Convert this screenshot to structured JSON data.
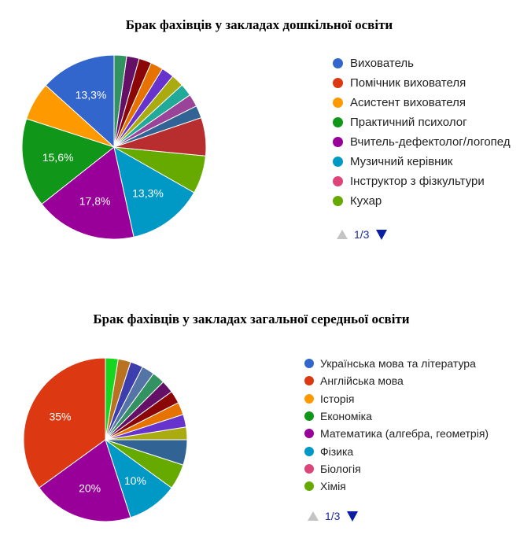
{
  "chart_data": [
    {
      "type": "pie",
      "title": "Брак фахівців у закладах дошкільної освіти",
      "legend_position": "right",
      "legend_entries": [
        {
          "label": "Вихователь",
          "color": "#3366cc"
        },
        {
          "label": "Помічник вихователя",
          "color": "#dc3912"
        },
        {
          "label": "Асистент вихователя",
          "color": "#ff9900"
        },
        {
          "label": "Практичний психолог",
          "color": "#109618"
        },
        {
          "label": "Вчитель-дефектолог/логопед",
          "color": "#990099"
        },
        {
          "label": "Музичний керівник",
          "color": "#0099c6"
        },
        {
          "label": "Інструктор з фізкультури",
          "color": "#dd4477"
        },
        {
          "label": "Кухар",
          "color": "#66aa00"
        }
      ],
      "pager": "1/3",
      "slices": [
        {
          "value": 13.3,
          "color": "#3366cc",
          "label": "13,3%"
        },
        {
          "value": 6.7,
          "color": "#ff9900",
          "label": ""
        },
        {
          "value": 15.6,
          "color": "#109618",
          "label": "15,6%"
        },
        {
          "value": 17.8,
          "color": "#990099",
          "label": "17,8%"
        },
        {
          "value": 13.3,
          "color": "#0099c6",
          "label": "13,3%"
        },
        {
          "value": 6.7,
          "color": "#66aa00",
          "label": ""
        },
        {
          "value": 6.7,
          "color": "#b82e2e",
          "label": ""
        },
        {
          "value": 2.2,
          "color": "#316395",
          "label": ""
        },
        {
          "value": 2.2,
          "color": "#994499",
          "label": ""
        },
        {
          "value": 2.2,
          "color": "#22aa99",
          "label": ""
        },
        {
          "value": 2.2,
          "color": "#aaaa11",
          "label": ""
        },
        {
          "value": 2.2,
          "color": "#6633cc",
          "label": ""
        },
        {
          "value": 2.2,
          "color": "#e67300",
          "label": ""
        },
        {
          "value": 2.2,
          "color": "#8b0707",
          "label": ""
        },
        {
          "value": 2.2,
          "color": "#651067",
          "label": ""
        },
        {
          "value": 2.2,
          "color": "#329262",
          "label": ""
        }
      ]
    },
    {
      "type": "pie",
      "title": "Брак фахівців у закладах загальної середньої освіти",
      "legend_position": "right",
      "legend_entries": [
        {
          "label": "Українська мова та література",
          "color": "#3366cc"
        },
        {
          "label": "Англійська мова",
          "color": "#dc3912"
        },
        {
          "label": "Історія",
          "color": "#ff9900"
        },
        {
          "label": "Економіка",
          "color": "#109618"
        },
        {
          "label": "Математика (алгебра, геометрія)",
          "color": "#990099"
        },
        {
          "label": "Фізика",
          "color": "#0099c6"
        },
        {
          "label": "Біологія",
          "color": "#dd4477"
        },
        {
          "label": "Хімія",
          "color": "#66aa00"
        }
      ],
      "pager": "1/3",
      "slices": [
        {
          "value": 35,
          "color": "#dc3912",
          "label": "35%"
        },
        {
          "value": 20,
          "color": "#990099",
          "label": "20%"
        },
        {
          "value": 10,
          "color": "#0099c6",
          "label": "10%"
        },
        {
          "value": 5,
          "color": "#66aa00",
          "label": ""
        },
        {
          "value": 5,
          "color": "#316395",
          "label": ""
        },
        {
          "value": 2.5,
          "color": "#aaaa11",
          "label": ""
        },
        {
          "value": 2.5,
          "color": "#6633cc",
          "label": ""
        },
        {
          "value": 2.5,
          "color": "#e67300",
          "label": ""
        },
        {
          "value": 2.5,
          "color": "#8b0707",
          "label": ""
        },
        {
          "value": 2.5,
          "color": "#651067",
          "label": ""
        },
        {
          "value": 2.5,
          "color": "#329262",
          "label": ""
        },
        {
          "value": 2.5,
          "color": "#5574a6",
          "label": ""
        },
        {
          "value": 2.5,
          "color": "#3b3eac",
          "label": ""
        },
        {
          "value": 2.5,
          "color": "#b77322",
          "label": ""
        },
        {
          "value": 2.5,
          "color": "#16d620",
          "label": ""
        }
      ]
    }
  ]
}
